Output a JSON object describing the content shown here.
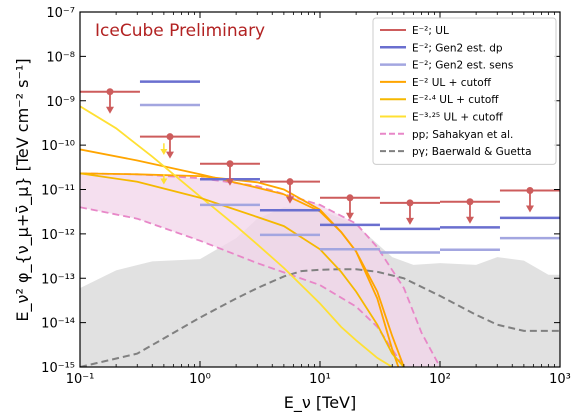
{
  "chart_data": {
    "type": "line",
    "annotation": "IceCube Preliminary",
    "xlabel": "E_ν [TeV]",
    "ylabel": "E_ν² φ_{ν_μ+ν̄_μ} [TeV cm⁻² s⁻¹]",
    "xscale": "log",
    "yscale": "log",
    "xlim": [
      0.1,
      1000
    ],
    "ylim": [
      1e-15,
      1e-07
    ],
    "x_ticks": [
      0.1,
      1,
      10,
      100,
      1000
    ],
    "x_tick_labels": [
      "10⁻¹",
      "10⁰",
      "10¹",
      "10²",
      "10³"
    ],
    "y_ticks": [
      1e-15,
      1e-14,
      1e-13,
      1e-12,
      1e-11,
      1e-10,
      1e-09,
      1e-08,
      1e-07
    ],
    "y_tick_labels": [
      "10⁻¹⁵",
      "10⁻¹⁴",
      "10⁻¹³",
      "10⁻¹²",
      "10⁻¹¹",
      "10⁻¹⁰",
      "10⁻⁹",
      "10⁻⁸",
      "10⁻⁷"
    ],
    "legend_position": "upper right",
    "colors": {
      "ul": "#cd5c5c",
      "gen2_dp": "#6a6fcf",
      "gen2_sens": "#a3a6e0",
      "cut2": "#ffa500",
      "cut24": "#f5b800",
      "cut325": "#ffe033",
      "pp": "#e887c8",
      "pp_fill": "#f2d4ea",
      "pgamma": "#808080",
      "gray_fill": "#dcdcdc"
    },
    "legend": [
      {
        "label": "E⁻²; UL",
        "style": "ul"
      },
      {
        "label": "E⁻²; Gen2 est. dp",
        "style": "gen2_dp"
      },
      {
        "label": "E⁻²; Gen2 est. sens",
        "style": "gen2_sens"
      },
      {
        "label": "E⁻² UL + cutoff",
        "style": "cut2"
      },
      {
        "label": "E⁻²·⁴ UL + cutoff",
        "style": "cut24"
      },
      {
        "label": "E⁻³·²⁵ UL + cutoff",
        "style": "cut325"
      },
      {
        "label": "pp; Sahakyan et al.",
        "style": "pp"
      },
      {
        "label": "pγ; Baerwald & Guetta",
        "style": "pgamma"
      }
    ],
    "bins": [
      {
        "x0": 0.1,
        "x1": 0.316,
        "ul": 1.6e-09
      },
      {
        "x0": 0.316,
        "x1": 1.0,
        "ul": 1.55e-10,
        "dp": 2.7e-09,
        "sens": 8e-10
      },
      {
        "x0": 1.0,
        "x1": 3.16,
        "ul": 3.8e-11,
        "dp": 1.7e-11,
        "sens": 4.5e-12
      },
      {
        "x0": 3.16,
        "x1": 10.0,
        "ul": 1.5e-11,
        "dp": 3.4e-12,
        "sens": 9.5e-13
      },
      {
        "x0": 10.0,
        "x1": 31.6,
        "ul": 6.5e-12,
        "dp": 1.6e-12,
        "sens": 4.5e-13
      },
      {
        "x0": 31.6,
        "x1": 100.0,
        "ul": 5e-12,
        "dp": 1.3e-12,
        "sens": 3.8e-13
      },
      {
        "x0": 100.0,
        "x1": 316.0,
        "ul": 5.3e-12,
        "dp": 1.4e-12,
        "sens": 4.4e-13
      },
      {
        "x0": 316.0,
        "x1": 1000.0,
        "ul": 9.5e-12,
        "dp": 2.3e-12,
        "sens": 8e-13
      }
    ],
    "cutoff_curves": [
      {
        "style": "cut2",
        "x": [
          0.1,
          0.3,
          1,
          3,
          5,
          10,
          15,
          20,
          30,
          40,
          45
        ],
        "y": [
          2.3e-11,
          2.2e-11,
          2e-11,
          1.45e-11,
          1e-11,
          3.5e-12,
          1.1e-12,
          4e-13,
          3.5e-14,
          2.5e-15,
          1e-15
        ]
      },
      {
        "style": "cut2",
        "x": [
          0.1,
          0.3,
          1,
          3,
          5,
          10,
          15,
          20,
          30,
          40,
          50
        ],
        "y": [
          8e-11,
          4.5e-11,
          2.2e-11,
          1.1e-11,
          7.8e-12,
          3.2e-12,
          1.1e-12,
          4e-13,
          5e-14,
          5e-15,
          1e-15
        ]
      },
      {
        "style": "cut325",
        "x": [
          0.1,
          0.2,
          0.4,
          1,
          2,
          3,
          5,
          10,
          15,
          20,
          30,
          40
        ],
        "y": [
          7.5e-10,
          2.4e-10,
          5.5e-11,
          7e-12,
          1.5e-12,
          5.8e-13,
          1.7e-13,
          2.7e-14,
          8e-15,
          4e-15,
          1.6e-15,
          1e-15
        ]
      },
      {
        "style": "cut24",
        "x": [
          0.1,
          0.3,
          1,
          3,
          5,
          10,
          15,
          20,
          30,
          40,
          50
        ],
        "y": [
          2.3e-11,
          1.5e-11,
          6.5e-12,
          2.4e-12,
          1.5e-12,
          4.5e-13,
          1.4e-13,
          5e-14,
          9e-15,
          2e-15,
          1e-15
        ]
      }
    ],
    "arrows_tev": [
      {
        "x": 0.5,
        "y_from": 1.1e-10,
        "y_to": 6e-11
      },
      {
        "x": 0.5,
        "y_from": 2.2e-11,
        "y_to": 1.3e-11
      }
    ],
    "pp_band": {
      "x": [
        0.1,
        0.3,
        1,
        3,
        10,
        20,
        30,
        50,
        70,
        100
      ],
      "upper": [
        2.3e-11,
        2.2e-11,
        1.8e-11,
        1.2e-11,
        4.5e-12,
        1.7e-12,
        5e-13,
        6e-14,
        6e-15,
        1e-15
      ],
      "lower": [
        4e-12,
        2.2e-12,
        7e-13,
        2.2e-13,
        7e-14,
        2.3e-14,
        8e-15,
        1e-15,
        null,
        null
      ]
    },
    "pgamma_curve": {
      "x": [
        0.1,
        0.3,
        1,
        2,
        3,
        5,
        7,
        10,
        15,
        20,
        30,
        50,
        100,
        200,
        300,
        500,
        1000
      ],
      "y": [
        1e-15,
        2e-15,
        1.3e-14,
        3.5e-14,
        6e-14,
        1.1e-13,
        1.45e-13,
        1.55e-13,
        1.6e-13,
        1.6e-13,
        1.4e-13,
        1e-13,
        4e-14,
        1.5e-14,
        9e-15,
        6.5e-15,
        6.5e-15
      ]
    },
    "gray_band": {
      "x": [
        0.1,
        0.2,
        0.4,
        1,
        2,
        3,
        5,
        10,
        20,
        40,
        60,
        100,
        200,
        300,
        500,
        800,
        1000
      ],
      "upper": [
        6e-14,
        1.5e-13,
        2.4e-13,
        2.7e-13,
        8e-13,
        2.2e-12,
        4e-12,
        3.5e-12,
        1.6e-12,
        3e-13,
        2e-13,
        2.2e-13,
        2e-13,
        3e-13,
        2.5e-13,
        1.2e-13,
        1.2e-13
      ],
      "lower": [
        1e-15,
        1e-15,
        1e-15,
        1e-15,
        1e-15,
        1e-15,
        1e-15,
        1e-15,
        1e-15,
        1e-15,
        1e-15,
        1e-15,
        1e-15,
        1e-15,
        1e-15,
        1e-15,
        1e-15
      ]
    }
  }
}
